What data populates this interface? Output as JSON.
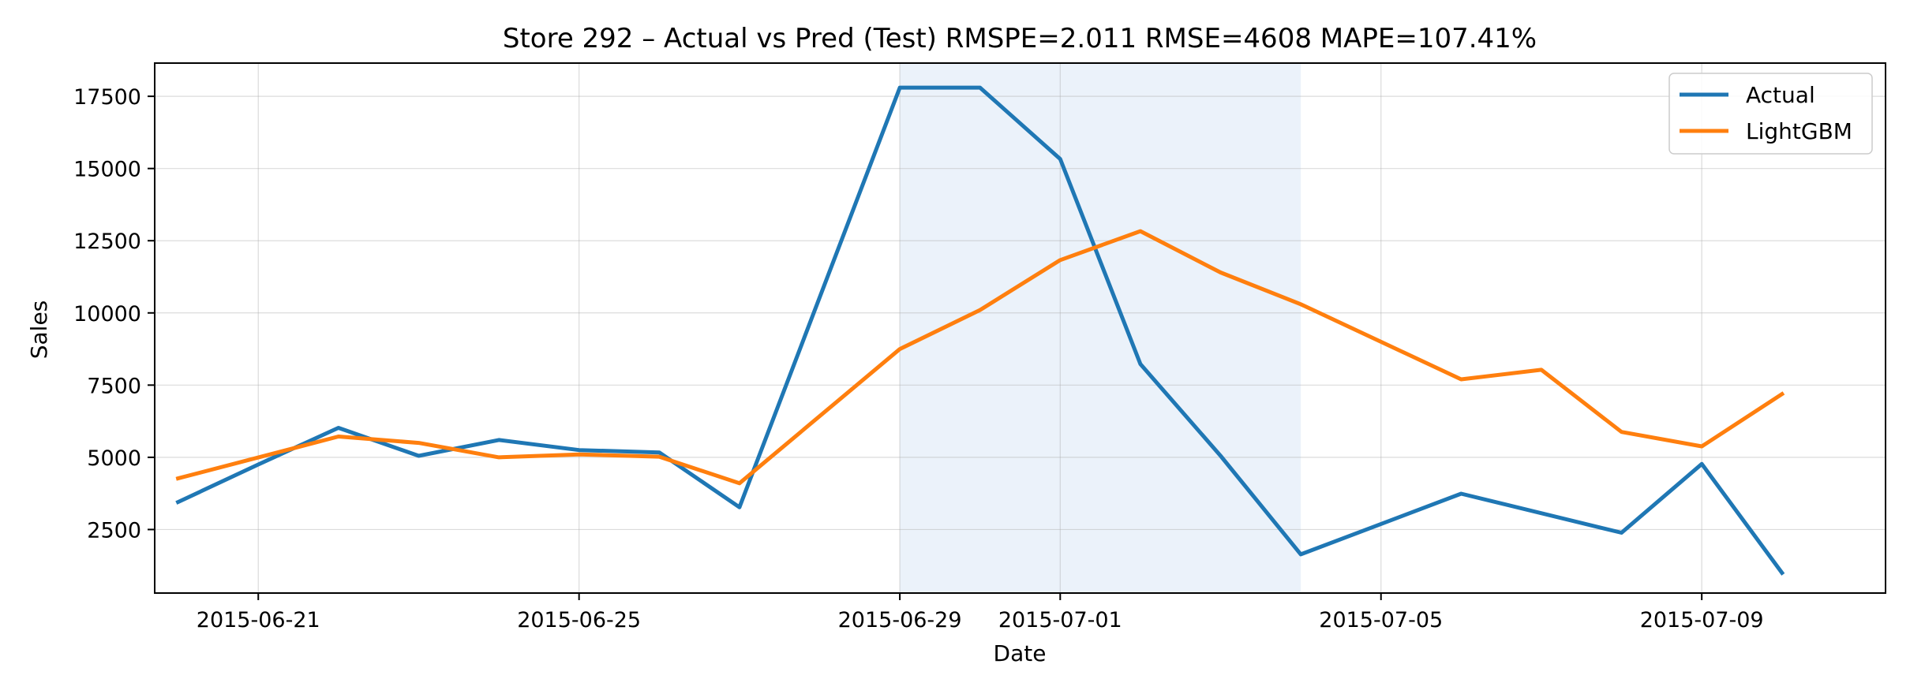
{
  "chart_data": {
    "type": "line",
    "title": "Store 292 – Actual vs Pred (Test)  RMSPE=2.011  RMSE=4608  MAPE=107.41%",
    "xlabel": "Date",
    "ylabel": "Sales",
    "x": [
      "2015-06-20",
      "2015-06-21",
      "2015-06-22",
      "2015-06-23",
      "2015-06-24",
      "2015-06-25",
      "2015-06-26",
      "2015-06-27",
      "2015-06-28",
      "2015-06-29",
      "2015-06-30",
      "2015-07-01",
      "2015-07-02",
      "2015-07-03",
      "2015-07-04",
      "2015-07-05",
      "2015-07-06",
      "2015-07-07",
      "2015-07-08",
      "2015-07-09",
      "2015-07-10"
    ],
    "series": [
      {
        "name": "Actual",
        "color": "#1f77b4",
        "values": [
          3450,
          4750,
          6020,
          5050,
          5600,
          5250,
          5170,
          3270,
          null,
          17800,
          17800,
          15330,
          8230,
          5050,
          1640,
          null,
          3740,
          null,
          2390,
          4770,
          1000
        ]
      },
      {
        "name": "LightGBM",
        "color": "#ff7f0e",
        "values": [
          4270,
          null,
          5720,
          5500,
          5000,
          5100,
          5020,
          4100,
          null,
          8750,
          10100,
          11830,
          12830,
          11400,
          10300,
          null,
          7700,
          8030,
          5880,
          5380,
          7190
        ]
      }
    ],
    "xlim": [
      "2015-06-19T17:00",
      "2015-07-11T07:00"
    ],
    "ylim": [
      300,
      18650
    ],
    "x_ticks": [
      "2015-06-21",
      "2015-06-25",
      "2015-06-29",
      "2015-07-01",
      "2015-07-05",
      "2015-07-09"
    ],
    "y_ticks": [
      2500,
      5000,
      7500,
      10000,
      12500,
      15000,
      17500
    ],
    "shaded_span": [
      "2015-06-29",
      "2015-07-04"
    ],
    "shaded_color": "#dbe8f5",
    "grid": true,
    "legend_position": "top-right"
  }
}
